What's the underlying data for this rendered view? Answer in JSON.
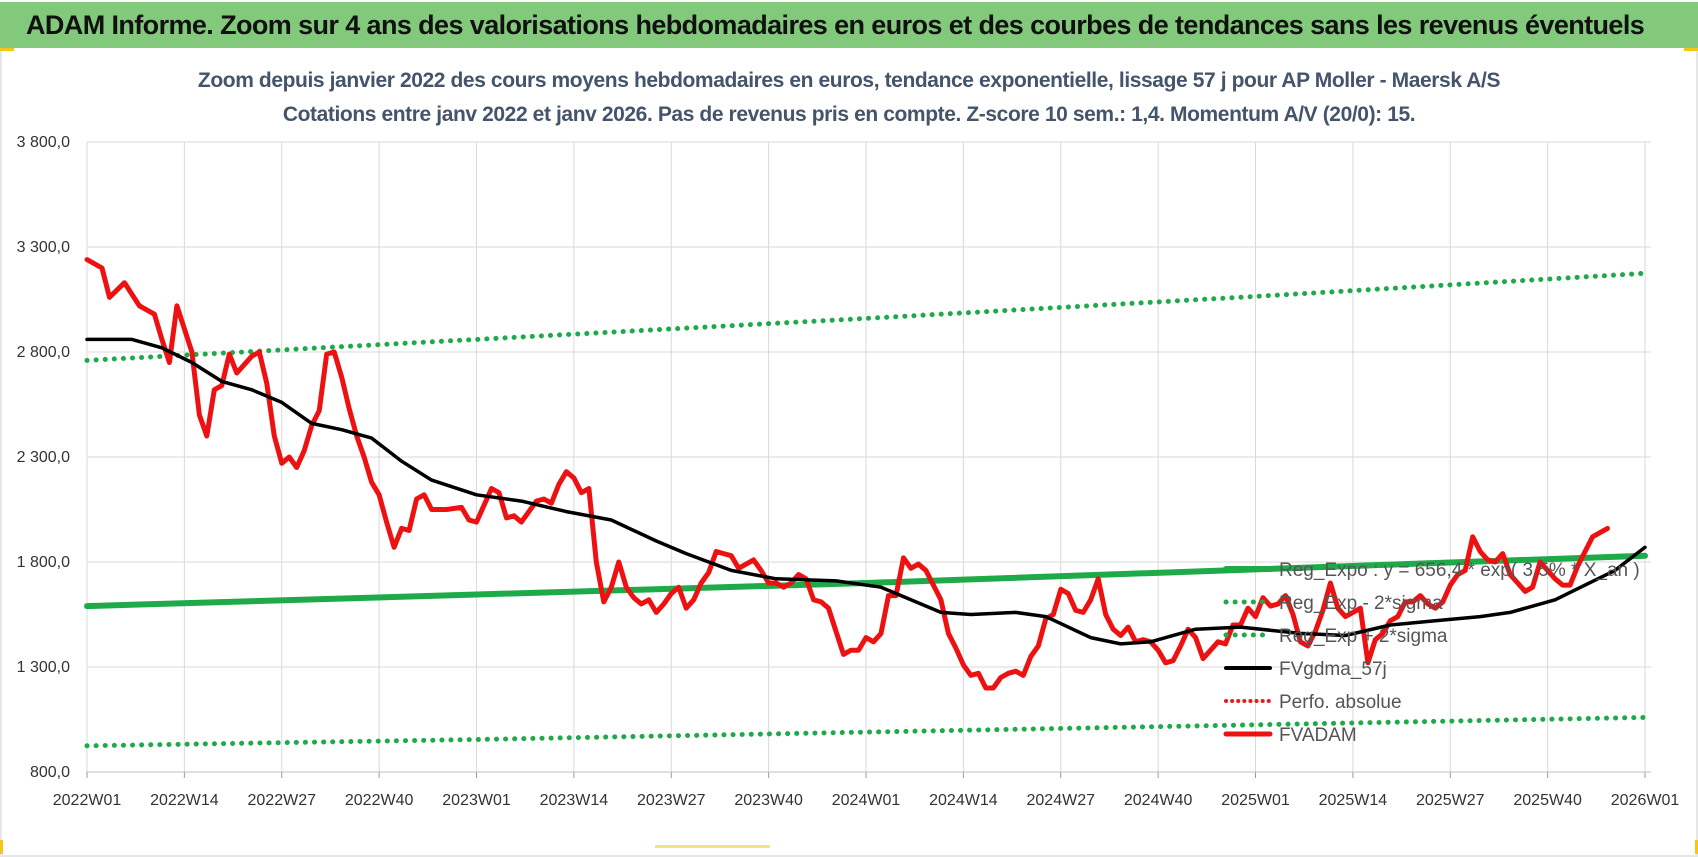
{
  "header": {
    "title": "ADAM Informe. Zoom sur 4 ans des valorisations hebdomadaires en euros et des courbes de tendances sans les revenus éventuels"
  },
  "colors": {
    "banner": "#82c97c",
    "price_line": "#ee1111",
    "moving_average": "#000000",
    "regression": "#1faa4a",
    "sigma_bands": "#1faa4a",
    "perfo_absolue": "#e02020",
    "subtitle_text": "#44546a"
  },
  "chart_data": {
    "type": "line",
    "title": "Zoom depuis janvier 2022 des cours moyens hebdomadaires en euros, tendance exponentielle, lissage 57 j pour AP Moller - Maersk A/S",
    "subtitle": "Cotations entre janv 2022 et janv 2026. Pas de revenus pris en compte. Z-score 10 sem.: 1,4. Momentum A/V (20/0): 15.",
    "xlabel": "",
    "ylabel": "",
    "ylim": [
      800,
      3900
    ],
    "yticks": [
      800,
      1300,
      1800,
      2300,
      2800,
      3300,
      3800
    ],
    "ytick_labels": [
      "800,0",
      "1 300,0",
      "1 800,0",
      "2 300,0",
      "2 800,0",
      "3 300,0",
      "3 800,0"
    ],
    "xtick_labels": [
      "2022W01",
      "2022W14",
      "2022W27",
      "2022W40",
      "2023W01",
      "2023W14",
      "2023W27",
      "2023W40",
      "2024W01",
      "2024W14",
      "2024W27",
      "2024W40",
      "2025W01",
      "2025W14",
      "2025W27",
      "2025W40",
      "2026W01"
    ],
    "grid": true,
    "legend_position": "bottom-right",
    "series": [
      {
        "name": "Reg_Expo : y = 656,4 * exp( 3,5% * X_an )",
        "style": "solid-thick",
        "points": [
          [
            0,
            1590
          ],
          [
            52,
            1645
          ],
          [
            104,
            1700
          ],
          [
            156,
            1765
          ],
          [
            208,
            1830
          ]
        ]
      },
      {
        "name": "Reg_Exp - 2*sigma",
        "style": "dotted",
        "points": [
          [
            0,
            925
          ],
          [
            52,
            955
          ],
          [
            104,
            990
          ],
          [
            156,
            1025
          ],
          [
            208,
            1060
          ]
        ]
      },
      {
        "name": "Reg_Exp + 2*sigma",
        "style": "dotted",
        "points": [
          [
            0,
            2760
          ],
          [
            52,
            2860
          ],
          [
            104,
            2960
          ],
          [
            156,
            3065
          ],
          [
            208,
            3175
          ]
        ]
      },
      {
        "name": "FVgdma_57j",
        "style": "solid",
        "points": [
          [
            0,
            2860
          ],
          [
            6,
            2860
          ],
          [
            10,
            2820
          ],
          [
            14,
            2750
          ],
          [
            18,
            2660
          ],
          [
            22,
            2620
          ],
          [
            26,
            2560
          ],
          [
            30,
            2460
          ],
          [
            34,
            2430
          ],
          [
            38,
            2390
          ],
          [
            42,
            2280
          ],
          [
            46,
            2190
          ],
          [
            52,
            2120
          ],
          [
            58,
            2090
          ],
          [
            64,
            2040
          ],
          [
            70,
            2000
          ],
          [
            76,
            1900
          ],
          [
            80,
            1840
          ],
          [
            86,
            1760
          ],
          [
            92,
            1720
          ],
          [
            100,
            1710
          ],
          [
            106,
            1680
          ],
          [
            110,
            1620
          ],
          [
            114,
            1560
          ],
          [
            118,
            1550
          ],
          [
            124,
            1560
          ],
          [
            128,
            1540
          ],
          [
            134,
            1440
          ],
          [
            138,
            1410
          ],
          [
            142,
            1420
          ],
          [
            148,
            1480
          ],
          [
            154,
            1490
          ],
          [
            162,
            1460
          ],
          [
            168,
            1450
          ],
          [
            174,
            1500
          ],
          [
            180,
            1520
          ],
          [
            186,
            1540
          ],
          [
            190,
            1560
          ],
          [
            196,
            1620
          ],
          [
            200,
            1690
          ],
          [
            204,
            1760
          ],
          [
            208,
            1870
          ]
        ]
      },
      {
        "name": "Perfo. absolue",
        "style": "dotted",
        "points": []
      },
      {
        "name": "FVADAM",
        "style": "solid-thick",
        "points": [
          [
            0,
            3240
          ],
          [
            2,
            3200
          ],
          [
            3,
            3060
          ],
          [
            5,
            3130
          ],
          [
            7,
            3020
          ],
          [
            9,
            2980
          ],
          [
            10,
            2860
          ],
          [
            11,
            2750
          ],
          [
            12,
            3020
          ],
          [
            14,
            2800
          ],
          [
            15,
            2500
          ],
          [
            16,
            2400
          ],
          [
            17,
            2620
          ],
          [
            18,
            2640
          ],
          [
            19,
            2790
          ],
          [
            20,
            2700
          ],
          [
            22,
            2780
          ],
          [
            23,
            2800
          ],
          [
            24,
            2650
          ],
          [
            25,
            2400
          ],
          [
            26,
            2270
          ],
          [
            27,
            2300
          ],
          [
            28,
            2250
          ],
          [
            29,
            2330
          ],
          [
            30,
            2450
          ],
          [
            31,
            2520
          ],
          [
            32,
            2790
          ],
          [
            33,
            2800
          ],
          [
            34,
            2680
          ],
          [
            35,
            2530
          ],
          [
            36,
            2400
          ],
          [
            37,
            2300
          ],
          [
            38,
            2180
          ],
          [
            39,
            2120
          ],
          [
            40,
            1990
          ],
          [
            41,
            1870
          ],
          [
            42,
            1960
          ],
          [
            43,
            1950
          ],
          [
            44,
            2100
          ],
          [
            45,
            2120
          ],
          [
            46,
            2050
          ],
          [
            48,
            2050
          ],
          [
            50,
            2060
          ],
          [
            51,
            2000
          ],
          [
            52,
            1990
          ],
          [
            54,
            2150
          ],
          [
            55,
            2130
          ],
          [
            56,
            2010
          ],
          [
            57,
            2020
          ],
          [
            58,
            1990
          ],
          [
            60,
            2090
          ],
          [
            61,
            2100
          ],
          [
            62,
            2080
          ],
          [
            63,
            2170
          ],
          [
            64,
            2230
          ],
          [
            65,
            2200
          ],
          [
            66,
            2130
          ],
          [
            67,
            2150
          ],
          [
            68,
            1800
          ],
          [
            69,
            1610
          ],
          [
            70,
            1680
          ],
          [
            71,
            1800
          ],
          [
            72,
            1680
          ],
          [
            73,
            1630
          ],
          [
            74,
            1600
          ],
          [
            75,
            1620
          ],
          [
            76,
            1560
          ],
          [
            77,
            1600
          ],
          [
            78,
            1650
          ],
          [
            79,
            1680
          ],
          [
            80,
            1580
          ],
          [
            81,
            1620
          ],
          [
            82,
            1700
          ],
          [
            83,
            1750
          ],
          [
            84,
            1850
          ],
          [
            85,
            1840
          ],
          [
            86,
            1830
          ],
          [
            87,
            1770
          ],
          [
            88,
            1790
          ],
          [
            89,
            1810
          ],
          [
            90,
            1760
          ],
          [
            91,
            1700
          ],
          [
            92,
            1700
          ],
          [
            93,
            1680
          ],
          [
            94,
            1700
          ],
          [
            95,
            1740
          ],
          [
            96,
            1720
          ],
          [
            97,
            1620
          ],
          [
            98,
            1610
          ],
          [
            99,
            1580
          ],
          [
            100,
            1470
          ],
          [
            101,
            1360
          ],
          [
            102,
            1380
          ],
          [
            103,
            1380
          ],
          [
            104,
            1440
          ],
          [
            105,
            1420
          ],
          [
            106,
            1460
          ],
          [
            107,
            1640
          ],
          [
            108,
            1640
          ],
          [
            109,
            1820
          ],
          [
            110,
            1770
          ],
          [
            111,
            1790
          ],
          [
            112,
            1760
          ],
          [
            113,
            1690
          ],
          [
            114,
            1620
          ],
          [
            115,
            1460
          ],
          [
            116,
            1390
          ],
          [
            117,
            1310
          ],
          [
            118,
            1260
          ],
          [
            119,
            1270
          ],
          [
            120,
            1200
          ],
          [
            121,
            1200
          ],
          [
            122,
            1250
          ],
          [
            123,
            1270
          ],
          [
            124,
            1280
          ],
          [
            125,
            1260
          ],
          [
            126,
            1350
          ],
          [
            127,
            1400
          ],
          [
            128,
            1530
          ],
          [
            129,
            1550
          ],
          [
            130,
            1670
          ],
          [
            131,
            1650
          ],
          [
            132,
            1570
          ],
          [
            133,
            1560
          ],
          [
            134,
            1620
          ],
          [
            135,
            1720
          ],
          [
            136,
            1550
          ],
          [
            137,
            1480
          ],
          [
            138,
            1450
          ],
          [
            139,
            1490
          ],
          [
            140,
            1420
          ],
          [
            141,
            1430
          ],
          [
            142,
            1420
          ],
          [
            143,
            1380
          ],
          [
            144,
            1320
          ],
          [
            145,
            1330
          ],
          [
            146,
            1400
          ],
          [
            147,
            1480
          ],
          [
            148,
            1440
          ],
          [
            149,
            1340
          ],
          [
            150,
            1380
          ],
          [
            151,
            1420
          ],
          [
            152,
            1410
          ],
          [
            153,
            1500
          ],
          [
            154,
            1500
          ],
          [
            155,
            1580
          ],
          [
            156,
            1540
          ],
          [
            157,
            1630
          ],
          [
            158,
            1590
          ],
          [
            159,
            1600
          ],
          [
            160,
            1640
          ],
          [
            161,
            1550
          ],
          [
            162,
            1420
          ],
          [
            163,
            1400
          ],
          [
            164,
            1470
          ],
          [
            165,
            1570
          ],
          [
            166,
            1700
          ],
          [
            167,
            1580
          ],
          [
            168,
            1540
          ],
          [
            169,
            1560
          ],
          [
            170,
            1580
          ],
          [
            171,
            1320
          ],
          [
            172,
            1430
          ],
          [
            173,
            1460
          ],
          [
            174,
            1520
          ],
          [
            175,
            1540
          ],
          [
            176,
            1610
          ],
          [
            177,
            1610
          ],
          [
            178,
            1640
          ],
          [
            179,
            1600
          ],
          [
            180,
            1580
          ],
          [
            181,
            1610
          ],
          [
            182,
            1690
          ],
          [
            183,
            1740
          ],
          [
            184,
            1760
          ],
          [
            185,
            1920
          ],
          [
            186,
            1850
          ],
          [
            187,
            1810
          ],
          [
            188,
            1800
          ],
          [
            189,
            1840
          ],
          [
            190,
            1740
          ],
          [
            191,
            1700
          ],
          [
            192,
            1660
          ],
          [
            193,
            1680
          ],
          [
            194,
            1800
          ],
          [
            195,
            1760
          ],
          [
            196,
            1720
          ],
          [
            197,
            1690
          ],
          [
            198,
            1690
          ],
          [
            199,
            1780
          ],
          [
            200,
            1850
          ],
          [
            201,
            1920
          ],
          [
            202,
            1940
          ],
          [
            203,
            1960
          ]
        ]
      }
    ]
  }
}
